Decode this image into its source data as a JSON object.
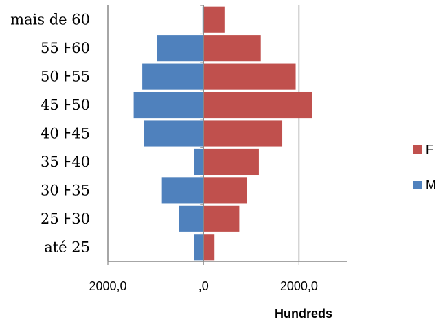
{
  "chart_data": {
    "type": "bar",
    "orientation": "horizontal",
    "layout": "population-pyramid",
    "categories": [
      "até 25",
      "25 ⊦30",
      "30 ⊦35",
      "35 ⊦40",
      "40 ⊦45",
      "45 ⊦50",
      "50 ⊦55",
      "55 ⊦60",
      "mais de 60"
    ],
    "series": [
      {
        "name": "F",
        "color": "#C0504D",
        "values": [
          230,
          750,
          910,
          1160,
          1650,
          2270,
          1930,
          1200,
          440
        ]
      },
      {
        "name": "M",
        "color": "#4F81BD",
        "values": [
          -200,
          -520,
          -870,
          -200,
          -1250,
          -1460,
          -1280,
          -970,
          -20
        ]
      }
    ],
    "x_ticks": [
      -2000,
      0,
      2000
    ],
    "x_tick_labels": [
      "2000,0",
      ",0",
      "2000,0"
    ],
    "xlim": [
      -2000,
      3000
    ],
    "display_units_label": "Hundreds",
    "legend": [
      "F",
      "M"
    ],
    "legend_position": "right",
    "gridlines": "vertical major"
  }
}
